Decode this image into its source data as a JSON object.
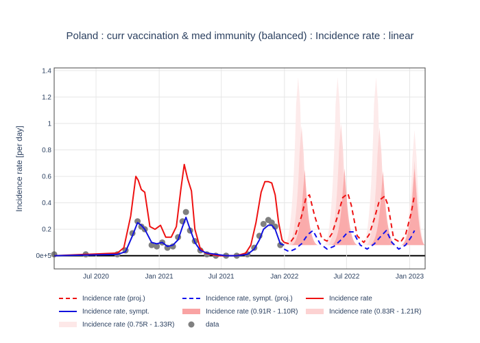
{
  "chart_data": {
    "type": "line",
    "title": "Poland : curr vaccination & med immunity (balanced) : Incidence rate : linear",
    "xlabel": "",
    "ylabel": "Incidence rate [per day]",
    "x_ticks": [
      "Jul 2020",
      "Jan 2021",
      "Jul 2021",
      "Jan 2022",
      "Jul 2022",
      "Jan 2023"
    ],
    "y_ticks": [
      "0e+5",
      "0.2",
      "0.4",
      "0.6",
      "0.8",
      "1",
      "1.2",
      "1.4"
    ],
    "ylim": [
      -0.1,
      1.42
    ],
    "grid": true,
    "legend_position": "bottom",
    "colors": {
      "proj": "#ee1111",
      "sympt_proj": "#1111ee",
      "incidence": "#ee1111",
      "sympt": "#1111dd",
      "band_91": "#f9a3a3",
      "band_83": "#fcd2d2",
      "band_75": "#fde8e8",
      "data": "#808080"
    },
    "series": [
      {
        "name": "Incidence rate (proj.)",
        "x": [
          "2021-12-31",
          "2022-01-15",
          "2022-02-01",
          "2022-02-20",
          "2022-03-05",
          "2022-03-15",
          "2022-03-30",
          "2022-04-20",
          "2022-05-05",
          "2022-05-20",
          "2022-06-05",
          "2022-06-20",
          "2022-07-05",
          "2022-07-15",
          "2022-08-01",
          "2022-08-20",
          "2022-09-05",
          "2022-09-20",
          "2022-10-05",
          "2022-10-20",
          "2022-10-30",
          "2022-11-15",
          "2022-12-05",
          "2022-12-20",
          "2023-01-05",
          "2023-01-15"
        ],
        "values": [
          0.1,
          0.09,
          0.15,
          0.3,
          0.44,
          0.46,
          0.3,
          0.13,
          0.11,
          0.17,
          0.3,
          0.44,
          0.47,
          0.38,
          0.15,
          0.1,
          0.16,
          0.28,
          0.42,
          0.45,
          0.38,
          0.13,
          0.1,
          0.16,
          0.32,
          0.46
        ]
      },
      {
        "name": "Incidence rate, sympt. (proj.)",
        "x": [
          "2021-12-31",
          "2022-01-15",
          "2022-02-01",
          "2022-02-20",
          "2022-03-10",
          "2022-03-25",
          "2022-04-15",
          "2022-05-05",
          "2022-05-25",
          "2022-06-15",
          "2022-07-05",
          "2022-07-20",
          "2022-08-10",
          "2022-08-30",
          "2022-09-20",
          "2022-10-10",
          "2022-10-25",
          "2022-11-10",
          "2022-11-30",
          "2022-12-20",
          "2023-01-05",
          "2023-01-15"
        ],
        "values": [
          0.05,
          0.03,
          0.05,
          0.09,
          0.16,
          0.19,
          0.09,
          0.05,
          0.07,
          0.12,
          0.18,
          0.18,
          0.08,
          0.05,
          0.09,
          0.15,
          0.19,
          0.1,
          0.05,
          0.08,
          0.14,
          0.19
        ]
      },
      {
        "name": "Incidence rate",
        "x": [
          "2020-03-01",
          "2020-06-01",
          "2020-09-01",
          "2020-09-20",
          "2020-10-10",
          "2020-10-25",
          "2020-11-01",
          "2020-11-10",
          "2020-11-20",
          "2020-12-05",
          "2020-12-20",
          "2021-01-05",
          "2021-01-20",
          "2021-02-05",
          "2021-02-20",
          "2021-03-05",
          "2021-03-15",
          "2021-03-25",
          "2021-04-05",
          "2021-04-15",
          "2021-04-30",
          "2021-05-15",
          "2021-06-01",
          "2021-06-20",
          "2021-07-15",
          "2021-08-15",
          "2021-09-10",
          "2021-09-25",
          "2021-10-10",
          "2021-10-25",
          "2021-11-05",
          "2021-11-15",
          "2021-11-25",
          "2021-12-05",
          "2021-12-15",
          "2021-12-25",
          "2021-12-31"
        ],
        "values": [
          0.0,
          0.01,
          0.02,
          0.06,
          0.3,
          0.6,
          0.57,
          0.5,
          0.48,
          0.22,
          0.2,
          0.23,
          0.14,
          0.14,
          0.22,
          0.5,
          0.69,
          0.58,
          0.49,
          0.2,
          0.06,
          0.02,
          0.01,
          0.0,
          0.0,
          0.0,
          0.02,
          0.08,
          0.25,
          0.48,
          0.56,
          0.56,
          0.55,
          0.46,
          0.25,
          0.12,
          0.1
        ]
      },
      {
        "name": "Incidence rate, sympt.",
        "x": [
          "2020-03-01",
          "2020-06-01",
          "2020-09-01",
          "2020-09-25",
          "2020-10-15",
          "2020-10-30",
          "2020-11-10",
          "2020-11-20",
          "2020-12-10",
          "2020-12-25",
          "2021-01-10",
          "2021-01-25",
          "2021-02-10",
          "2021-02-25",
          "2021-03-10",
          "2021-03-20",
          "2021-04-01",
          "2021-04-15",
          "2021-05-01",
          "2021-05-20",
          "2021-06-15",
          "2021-07-15",
          "2021-08-15",
          "2021-09-15",
          "2021-10-05",
          "2021-10-20",
          "2021-11-01",
          "2021-11-15",
          "2021-11-25",
          "2021-12-05",
          "2021-12-20",
          "2021-12-31"
        ],
        "values": [
          0.0,
          0.005,
          0.01,
          0.03,
          0.15,
          0.25,
          0.23,
          0.2,
          0.1,
          0.09,
          0.1,
          0.07,
          0.08,
          0.12,
          0.22,
          0.29,
          0.2,
          0.1,
          0.04,
          0.02,
          0.01,
          0.0,
          0.0,
          0.01,
          0.05,
          0.12,
          0.2,
          0.23,
          0.23,
          0.2,
          0.09,
          0.08
        ]
      }
    ],
    "bands": [
      {
        "name": "Incidence rate (0.75R - 1.33R)",
        "peaks": [
          {
            "x": "2022-02-10",
            "value": 1.35
          },
          {
            "x": "2022-06-05",
            "value": 1.35
          },
          {
            "x": "2022-09-25",
            "value": 1.35
          },
          {
            "x": "2023-01-15",
            "value": 0.95
          }
        ]
      },
      {
        "name": "Incidence rate (0.83R - 1.21R)",
        "peaks": [
          {
            "x": "2022-02-20",
            "value": 0.98
          },
          {
            "x": "2022-06-15",
            "value": 1.0
          },
          {
            "x": "2022-10-05",
            "value": 0.97
          },
          {
            "x": "2023-01-15",
            "value": 0.72
          }
        ]
      },
      {
        "name": "Incidence rate (0.91R - 1.10R)",
        "peaks": [
          {
            "x": "2022-03-01",
            "value": 0.65
          },
          {
            "x": "2022-06-25",
            "value": 0.66
          },
          {
            "x": "2022-10-15",
            "value": 0.64
          },
          {
            "x": "2023-01-15",
            "value": 0.66
          }
        ]
      }
    ],
    "data_points": {
      "name": "data",
      "x": [
        "2020-03-01",
        "2020-06-01",
        "2020-09-01",
        "2020-09-25",
        "2020-10-15",
        "2020-10-30",
        "2020-11-10",
        "2020-11-20",
        "2020-12-10",
        "2020-12-25",
        "2021-01-10",
        "2021-01-25",
        "2021-02-10",
        "2021-02-25",
        "2021-03-10",
        "2021-03-20",
        "2021-04-01",
        "2021-04-15",
        "2021-05-01",
        "2021-05-20",
        "2021-06-15",
        "2021-07-15",
        "2021-08-15",
        "2021-09-15",
        "2021-10-05",
        "2021-10-20",
        "2021-11-01",
        "2021-11-15",
        "2021-11-25",
        "2021-12-05",
        "2021-12-20"
      ],
      "values": [
        0.01,
        0.01,
        0.01,
        0.04,
        0.17,
        0.26,
        0.22,
        0.2,
        0.08,
        0.07,
        0.1,
        0.06,
        0.07,
        0.14,
        0.26,
        0.33,
        0.19,
        0.11,
        0.04,
        0.01,
        0.0,
        0.0,
        0.0,
        0.01,
        0.06,
        0.15,
        0.24,
        0.27,
        0.25,
        0.22,
        0.08
      ]
    },
    "legend": [
      "Incidence rate (proj.)",
      "Incidence rate, sympt. (proj.)",
      "Incidence rate",
      "Incidence rate, sympt.",
      "Incidence rate (0.91R - 1.10R)",
      "Incidence rate (0.83R - 1.21R)",
      "Incidence rate (0.75R - 1.33R)",
      "data"
    ]
  }
}
